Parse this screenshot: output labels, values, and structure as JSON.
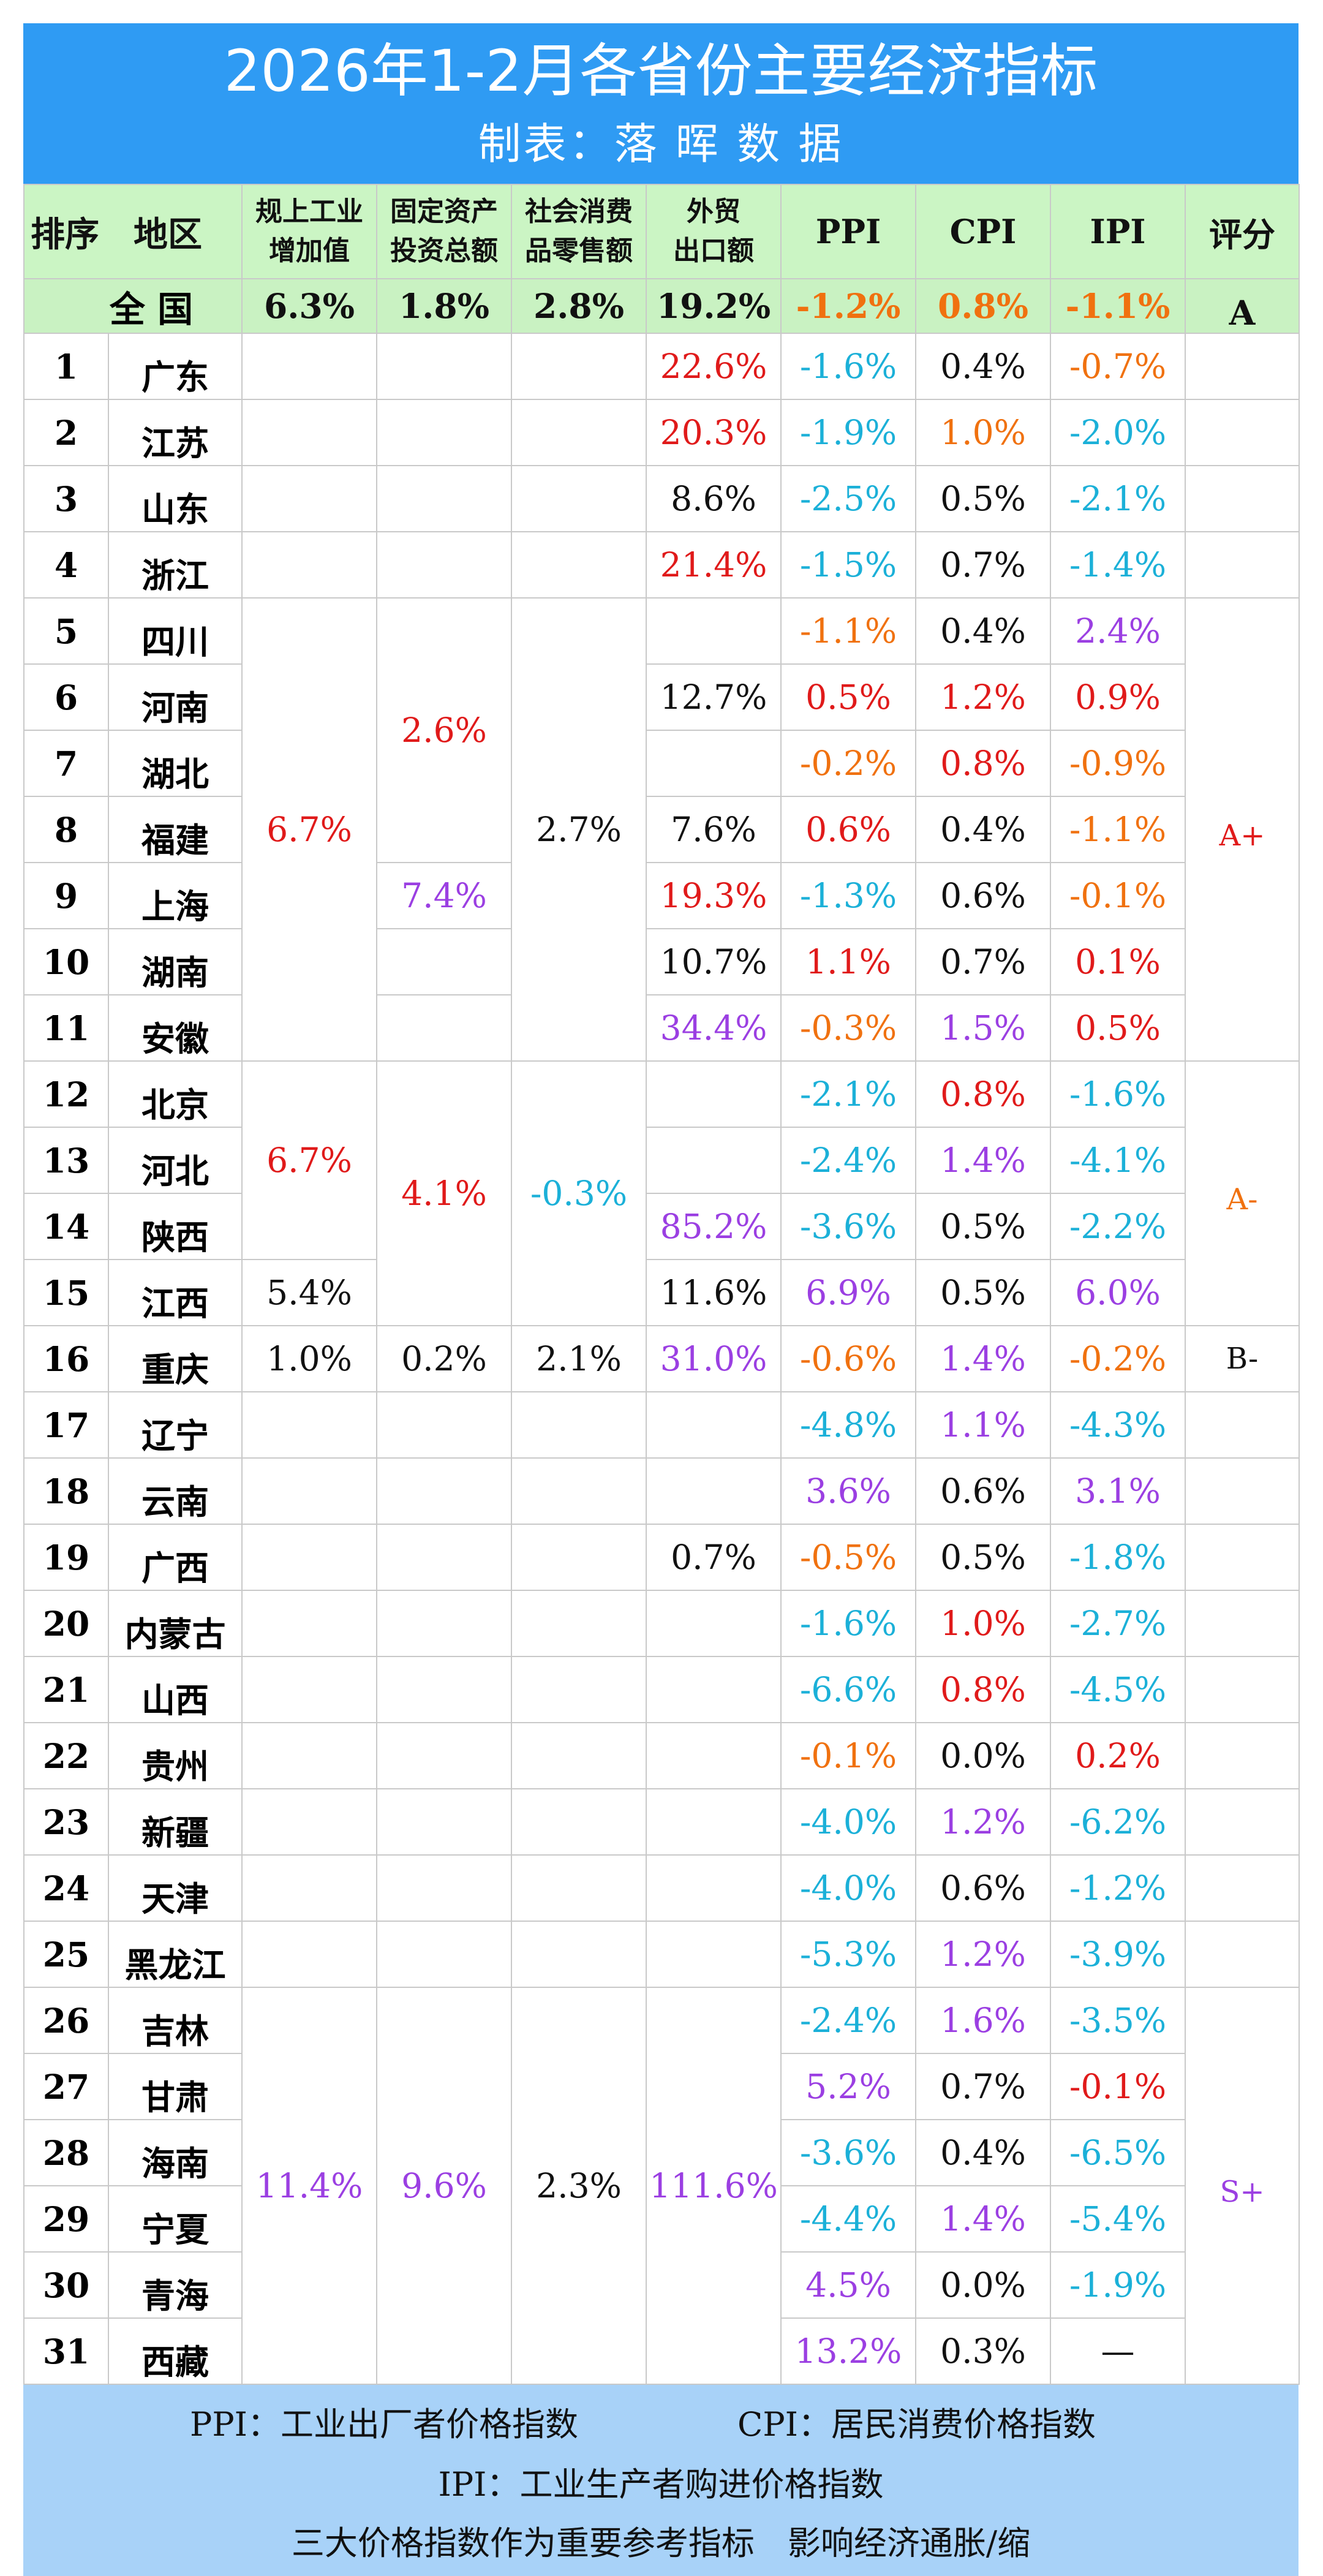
{
  "title": "2026年1-2月各省份主要经济指标",
  "subtitle": "制表：落 晖 数 据",
  "headers": {
    "rank_region": "排序　地区",
    "industrial_line1": "规上工业",
    "industrial_line2": "增加值",
    "investment_line1": "固定资产",
    "investment_line2": "投资总额",
    "retail_line1": "社会消费",
    "retail_line2": "品零售额",
    "export_line1": "外贸",
    "export_line2": "出口额",
    "ppi": "PPI",
    "cpi": "CPI",
    "ipi": "IPI",
    "grade": "评分"
  },
  "national": {
    "name": "全 国",
    "industrial": "6.3%",
    "investment": "1.8%",
    "retail": "2.8%",
    "export": "19.2%",
    "ppi": "-1.2%",
    "cpi": "0.8%",
    "ipi": "-1.1%",
    "grade": "A"
  },
  "colors": {
    "title_bg": "#2f9bf3",
    "header_bg": "#cbf5c4",
    "footer_bg": "#a8d2f8",
    "red": "#e01a1a",
    "orange": "#f0710f",
    "purple": "#9b3fe2",
    "cyan": "#1bb0d8",
    "black": "#111111"
  },
  "rows": [
    {
      "rank": "1",
      "name": "广东",
      "export": "22.6%",
      "export_c": "red",
      "ppi": "-1.6%",
      "ppi_c": "cyan",
      "cpi": "0.4%",
      "cpi_c": "black",
      "ipi": "-0.7%",
      "ipi_c": "orange"
    },
    {
      "rank": "2",
      "name": "江苏",
      "export": "20.3%",
      "export_c": "red",
      "ppi": "-1.9%",
      "ppi_c": "cyan",
      "cpi": "1.0%",
      "cpi_c": "orange",
      "ipi": "-2.0%",
      "ipi_c": "cyan"
    },
    {
      "rank": "3",
      "name": "山东",
      "export": "8.6%",
      "export_c": "black",
      "ppi": "-2.5%",
      "ppi_c": "cyan",
      "cpi": "0.5%",
      "cpi_c": "black",
      "ipi": "-2.1%",
      "ipi_c": "cyan"
    },
    {
      "rank": "4",
      "name": "浙江",
      "export": "21.4%",
      "export_c": "red",
      "ppi": "-1.5%",
      "ppi_c": "cyan",
      "cpi": "0.7%",
      "cpi_c": "black",
      "ipi": "-1.4%",
      "ipi_c": "cyan"
    },
    {
      "rank": "5",
      "name": "四川",
      "ppi": "-1.1%",
      "ppi_c": "orange",
      "cpi": "0.4%",
      "cpi_c": "black",
      "ipi": "2.4%",
      "ipi_c": "purple"
    },
    {
      "rank": "6",
      "name": "河南",
      "export": "12.7%",
      "export_c": "black",
      "ppi": "0.5%",
      "ppi_c": "red",
      "cpi": "1.2%",
      "cpi_c": "red",
      "ipi": "0.9%",
      "ipi_c": "red"
    },
    {
      "rank": "7",
      "name": "湖北",
      "ppi": "-0.2%",
      "ppi_c": "orange",
      "cpi": "0.8%",
      "cpi_c": "red",
      "ipi": "-0.9%",
      "ipi_c": "orange"
    },
    {
      "rank": "8",
      "name": "福建",
      "export": "7.6%",
      "export_c": "black",
      "ppi": "0.6%",
      "ppi_c": "red",
      "cpi": "0.4%",
      "cpi_c": "black",
      "ipi": "-1.1%",
      "ipi_c": "orange"
    },
    {
      "rank": "9",
      "name": "上海",
      "investment": "7.4%",
      "investment_c": "purple",
      "export": "19.3%",
      "export_c": "red",
      "ppi": "-1.3%",
      "ppi_c": "cyan",
      "cpi": "0.6%",
      "cpi_c": "black",
      "ipi": "-0.1%",
      "ipi_c": "orange"
    },
    {
      "rank": "10",
      "name": "湖南",
      "export": "10.7%",
      "export_c": "black",
      "ppi": "1.1%",
      "ppi_c": "red",
      "cpi": "0.7%",
      "cpi_c": "black",
      "ipi": "0.1%",
      "ipi_c": "red"
    },
    {
      "rank": "11",
      "name": "安徽",
      "export": "34.4%",
      "export_c": "purple",
      "ppi": "-0.3%",
      "ppi_c": "orange",
      "cpi": "1.5%",
      "cpi_c": "purple",
      "ipi": "0.5%",
      "ipi_c": "red"
    },
    {
      "rank": "12",
      "name": "北京",
      "ppi": "-2.1%",
      "ppi_c": "cyan",
      "cpi": "0.8%",
      "cpi_c": "red",
      "ipi": "-1.6%",
      "ipi_c": "cyan"
    },
    {
      "rank": "13",
      "name": "河北",
      "ppi": "-2.4%",
      "ppi_c": "cyan",
      "cpi": "1.4%",
      "cpi_c": "purple",
      "ipi": "-4.1%",
      "ipi_c": "cyan"
    },
    {
      "rank": "14",
      "name": "陕西",
      "export": "85.2%",
      "export_c": "purple",
      "ppi": "-3.6%",
      "ppi_c": "cyan",
      "cpi": "0.5%",
      "cpi_c": "black",
      "ipi": "-2.2%",
      "ipi_c": "cyan"
    },
    {
      "rank": "15",
      "name": "江西",
      "industrial": "5.4%",
      "industrial_c": "black",
      "export": "11.6%",
      "export_c": "black",
      "ppi": "6.9%",
      "ppi_c": "purple",
      "cpi": "0.5%",
      "cpi_c": "black",
      "ipi": "6.0%",
      "ipi_c": "purple"
    },
    {
      "rank": "16",
      "name": "重庆",
      "industrial": "1.0%",
      "industrial_c": "black",
      "investment": "0.2%",
      "investment_c": "black",
      "retail": "2.1%",
      "retail_c": "black",
      "export": "31.0%",
      "export_c": "purple",
      "ppi": "-0.6%",
      "ppi_c": "orange",
      "cpi": "1.4%",
      "cpi_c": "purple",
      "ipi": "-0.2%",
      "ipi_c": "orange",
      "grade": "B-",
      "grade_c": "black"
    },
    {
      "rank": "17",
      "name": "辽宁",
      "ppi": "-4.8%",
      "ppi_c": "cyan",
      "cpi": "1.1%",
      "cpi_c": "purple",
      "ipi": "-4.3%",
      "ipi_c": "cyan"
    },
    {
      "rank": "18",
      "name": "云南",
      "ppi": "3.6%",
      "ppi_c": "purple",
      "cpi": "0.6%",
      "cpi_c": "black",
      "ipi": "3.1%",
      "ipi_c": "purple"
    },
    {
      "rank": "19",
      "name": "广西",
      "export": "0.7%",
      "export_c": "black",
      "ppi": "-0.5%",
      "ppi_c": "orange",
      "cpi": "0.5%",
      "cpi_c": "black",
      "ipi": "-1.8%",
      "ipi_c": "cyan"
    },
    {
      "rank": "20",
      "name": "内蒙古",
      "ppi": "-1.6%",
      "ppi_c": "cyan",
      "cpi": "1.0%",
      "cpi_c": "red",
      "ipi": "-2.7%",
      "ipi_c": "cyan"
    },
    {
      "rank": "21",
      "name": "山西",
      "ppi": "-6.6%",
      "ppi_c": "cyan",
      "cpi": "0.8%",
      "cpi_c": "red",
      "ipi": "-4.5%",
      "ipi_c": "cyan"
    },
    {
      "rank": "22",
      "name": "贵州",
      "ppi": "-0.1%",
      "ppi_c": "orange",
      "cpi": "0.0%",
      "cpi_c": "black",
      "ipi": "0.2%",
      "ipi_c": "red"
    },
    {
      "rank": "23",
      "name": "新疆",
      "ppi": "-4.0%",
      "ppi_c": "cyan",
      "cpi": "1.2%",
      "cpi_c": "purple",
      "ipi": "-6.2%",
      "ipi_c": "cyan"
    },
    {
      "rank": "24",
      "name": "天津",
      "ppi": "-4.0%",
      "ppi_c": "cyan",
      "cpi": "0.6%",
      "cpi_c": "black",
      "ipi": "-1.2%",
      "ipi_c": "cyan"
    },
    {
      "rank": "25",
      "name": "黑龙江",
      "ppi": "-5.3%",
      "ppi_c": "cyan",
      "cpi": "1.2%",
      "cpi_c": "purple",
      "ipi": "-3.9%",
      "ipi_c": "cyan"
    },
    {
      "rank": "26",
      "name": "吉林",
      "ppi": "-2.4%",
      "ppi_c": "cyan",
      "cpi": "1.6%",
      "cpi_c": "purple",
      "ipi": "-3.5%",
      "ipi_c": "cyan"
    },
    {
      "rank": "27",
      "name": "甘肃",
      "ppi": "5.2%",
      "ppi_c": "purple",
      "cpi": "0.7%",
      "cpi_c": "black",
      "ipi": "-0.1%",
      "ipi_c": "red"
    },
    {
      "rank": "28",
      "name": "海南",
      "ppi": "-3.6%",
      "ppi_c": "cyan",
      "cpi": "0.4%",
      "cpi_c": "black",
      "ipi": "-6.5%",
      "ipi_c": "cyan"
    },
    {
      "rank": "29",
      "name": "宁夏",
      "ppi": "-4.4%",
      "ppi_c": "cyan",
      "cpi": "1.4%",
      "cpi_c": "purple",
      "ipi": "-5.4%",
      "ipi_c": "cyan"
    },
    {
      "rank": "30",
      "name": "青海",
      "ppi": "4.5%",
      "ppi_c": "purple",
      "cpi": "0.0%",
      "cpi_c": "black",
      "ipi": "-1.9%",
      "ipi_c": "cyan"
    },
    {
      "rank": "31",
      "name": "西藏",
      "ppi": "13.2%",
      "ppi_c": "purple",
      "cpi": "0.3%",
      "cpi_c": "black",
      "ipi": "—",
      "ipi_c": "black"
    }
  ],
  "groups": [
    {
      "rank_from": "5",
      "industrial": "6.7%",
      "industrial_c": "red",
      "investment": "2.6%",
      "investment_c": "red",
      "retail": "2.7%",
      "retail_c": "black",
      "grade": "A+",
      "grade_c": "red"
    },
    {
      "rank_from": "12",
      "industrial": "6.7%",
      "industrial_c": "red",
      "investment": "4.1%",
      "investment_c": "red",
      "retail": "-0.3%",
      "retail_c": "cyan",
      "grade": "A-",
      "grade_c": "orange"
    },
    {
      "rank_from": "26",
      "industrial": "11.4%",
      "industrial_c": "purple",
      "investment": "9.6%",
      "investment_c": "purple",
      "retail": "2.3%",
      "retail_c": "black",
      "export": "111.6%",
      "export_c": "purple",
      "grade": "S+",
      "grade_c": "purple"
    }
  ],
  "footer": {
    "ppi_note": "PPI：工业出厂者价格指数",
    "cpi_note": "CPI：居民消费价格指数",
    "ipi_note": "IPI：工业生产者购进价格指数",
    "summary": "三大价格指数作为重要参考指标　影响经济通胀/缩"
  }
}
